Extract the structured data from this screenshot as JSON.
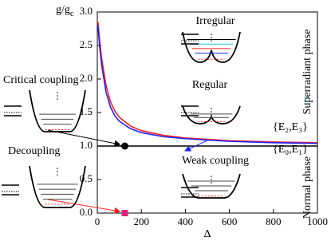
{
  "chart_data": {
    "type": "line",
    "xlabel": "Δ",
    "ylabel": "g/g",
    "ylabel_subscript": "c",
    "xlim": [
      0,
      1000
    ],
    "xticks": [
      0,
      200,
      400,
      600,
      800,
      1000
    ],
    "ylim": [
      0,
      3
    ],
    "yticks": [
      {
        "value": 0,
        "label": "0.0"
      },
      0.5,
      {
        "value": 1,
        "label": "1.0"
      },
      1.5,
      {
        "value": 2,
        "label": "2.0"
      },
      2.5,
      {
        "value": 3,
        "label": "3.0"
      }
    ],
    "hline": 1,
    "series": [
      {
        "name": "{E₂,E₃}",
        "color": "#ff2020",
        "x": [
          3,
          10,
          20,
          40,
          60,
          80,
          100,
          150,
          200,
          300,
          400,
          500,
          600,
          800,
          1000
        ],
        "values": [
          2.85,
          2.6,
          2.3,
          1.9,
          1.66,
          1.52,
          1.43,
          1.3,
          1.23,
          1.16,
          1.12,
          1.1,
          1.08,
          1.06,
          1.05
        ]
      },
      {
        "name": "{E₀,E₁}",
        "color": "#2020ff",
        "x": [
          3,
          10,
          20,
          40,
          60,
          80,
          100,
          150,
          200,
          300,
          400,
          500,
          600,
          800,
          1000
        ],
        "values": [
          2.8,
          2.5,
          2.2,
          1.8,
          1.58,
          1.45,
          1.37,
          1.26,
          1.2,
          1.14,
          1.11,
          1.09,
          1.07,
          1.05,
          1.04
        ]
      }
    ],
    "points": [
      {
        "name": "Critical coupling",
        "x": 125,
        "y": 1,
        "color": "#000000",
        "marker": "circle"
      },
      {
        "name": "Decoupling",
        "x": 125,
        "y": 0,
        "color": "#e0207a",
        "marker": "square"
      }
    ],
    "annotations": [
      "Irregular",
      "Regular",
      "Weak coupling",
      "Superradiant phase",
      "Normal phase"
    ]
  }
}
